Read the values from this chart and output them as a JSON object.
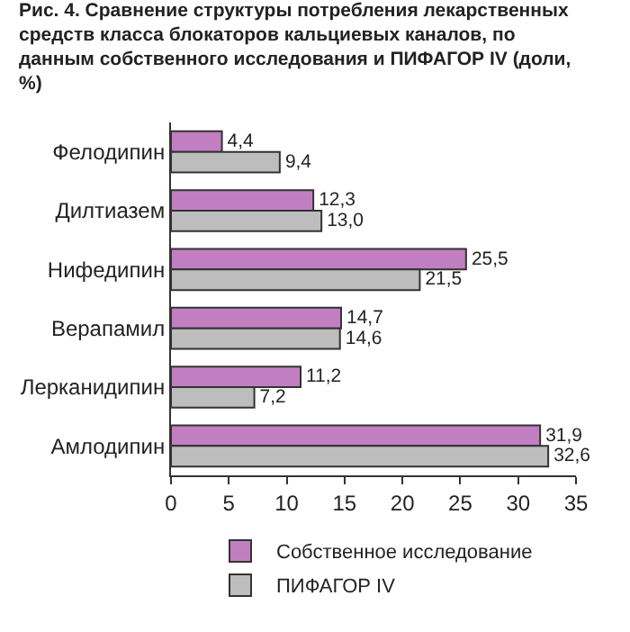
{
  "chart_data": {
    "type": "bar",
    "orientation": "horizontal",
    "title": "Рис. 4. Сравнение структуры потребления лекарственных средств класса блокаторов кальциевых каналов, по данным собственного исследования и ПИФАГОР IV (доли, %)",
    "categories": [
      "Фелодипин",
      "Дилтиазем",
      "Нифедипин",
      "Верапамил",
      "Лерканидипин",
      "Амлодипин"
    ],
    "series": [
      {
        "name": "Собственное исследование",
        "color": "#c17fc1",
        "values": [
          4.4,
          12.3,
          25.5,
          14.7,
          11.2,
          31.9
        ],
        "value_labels": [
          "4,4",
          "12,3",
          "25,5",
          "14,7",
          "11,2",
          "31,9"
        ]
      },
      {
        "name": "ПИФАГОР IV",
        "color": "#bdbdbd",
        "values": [
          9.4,
          13.0,
          21.5,
          14.6,
          7.2,
          32.6
        ],
        "value_labels": [
          "9,4",
          "13,0",
          "21,5",
          "14,6",
          "7,2",
          "32,6"
        ]
      }
    ],
    "xlim": [
      0,
      35
    ],
    "xticks": [
      0,
      5,
      10,
      15,
      20,
      25,
      30,
      35
    ],
    "grid": false,
    "legend": "bottom"
  }
}
